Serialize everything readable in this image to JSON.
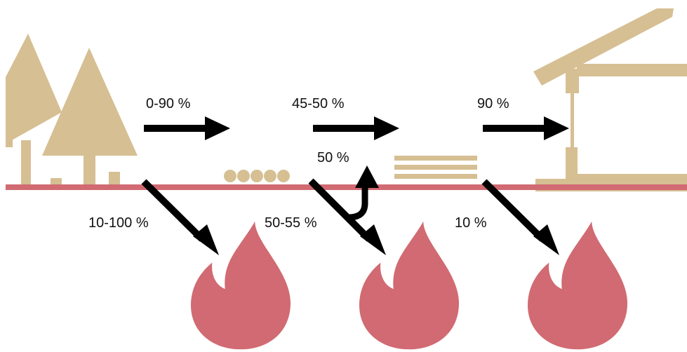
{
  "colors": {
    "wood": "#d6bf93",
    "ground": "#d16a72",
    "fire": "#d16a72",
    "arrow": "#000000",
    "text": "#111111",
    "background": "#ffffff"
  },
  "icons": [
    "tree-icon",
    "log-pile-icon",
    "lumber-stack-icon",
    "house-frame-icon",
    "fire-icon"
  ],
  "labels": {
    "forest_to_logs": "0-90 %",
    "logs_to_lumber": "45-50 %",
    "lumber_to_building": "90 %",
    "forest_to_fire": "10-100 %",
    "logs_to_fire": "50-55 %",
    "logs_reuse": "50 %",
    "lumber_to_fire": "10 %"
  }
}
